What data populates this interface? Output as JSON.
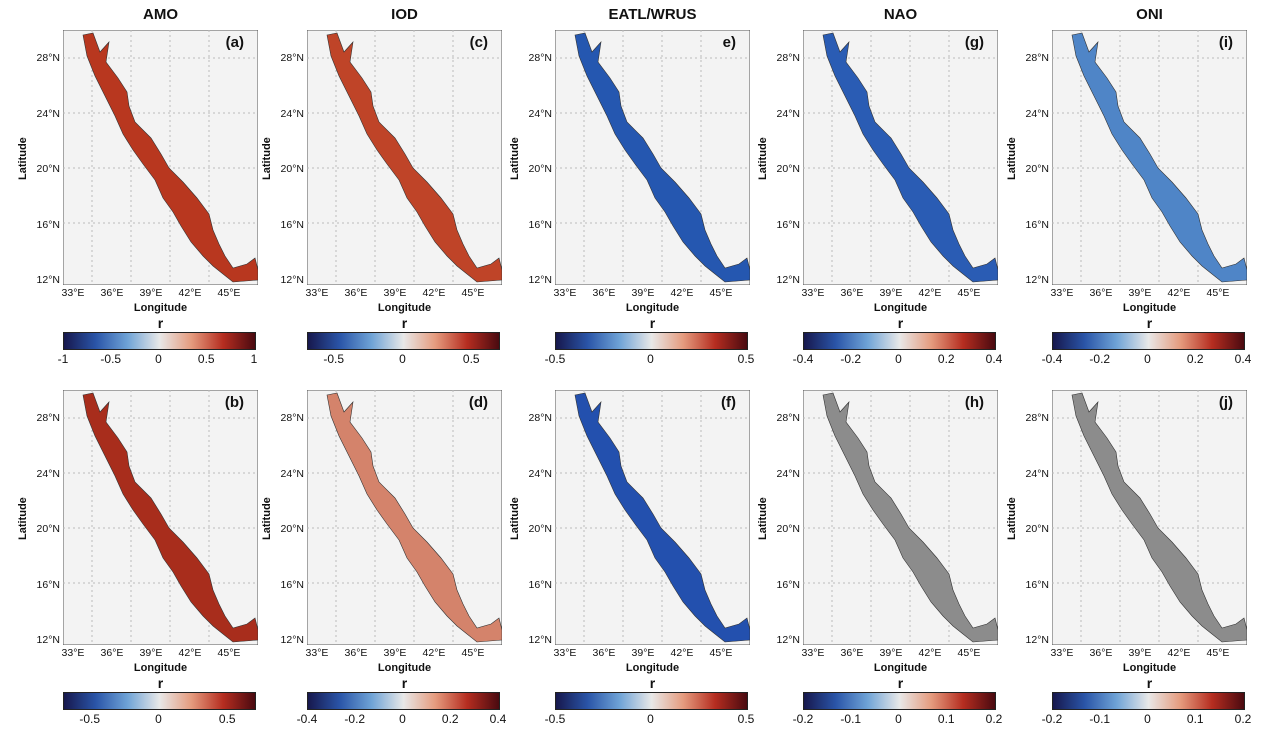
{
  "columns": [
    {
      "title": "AMO",
      "panels": [
        {
          "label": "(a)",
          "fill": "#b8371f",
          "cbar_ticks": [
            "-1",
            "-0.5",
            "0",
            "0.5",
            "1"
          ],
          "cbar_pos": [
            0,
            0.25,
            0.5,
            0.75,
            1
          ]
        },
        {
          "label": "(b)",
          "fill": "#a82d1c",
          "cbar_ticks": [
            "-0.5",
            "0",
            "0.5"
          ],
          "cbar_pos": [
            0.14,
            0.5,
            0.86
          ]
        }
      ]
    },
    {
      "title": "IOD",
      "panels": [
        {
          "label": "(c)",
          "fill": "#bf4428",
          "cbar_ticks": [
            "-0.5",
            "0",
            "0.5"
          ],
          "cbar_pos": [
            0.14,
            0.5,
            0.86
          ]
        },
        {
          "label": "(d)",
          "fill": "#d4836b",
          "cbar_ticks": [
            "-0.4",
            "-0.2",
            "0",
            "0.2",
            "0.4"
          ],
          "cbar_pos": [
            0,
            0.25,
            0.5,
            0.75,
            1
          ]
        }
      ]
    },
    {
      "title": "EATL/WRUS",
      "panels": [
        {
          "label": "e)",
          "fill": "#2557b0",
          "cbar_ticks": [
            "-0.5",
            "0",
            "0.5"
          ],
          "cbar_pos": [
            0,
            0.5,
            1
          ]
        },
        {
          "label": "(f)",
          "fill": "#2350ae",
          "cbar_ticks": [
            "-0.5",
            "0",
            "0.5"
          ],
          "cbar_pos": [
            0,
            0.5,
            1
          ]
        }
      ]
    },
    {
      "title": "NAO",
      "panels": [
        {
          "label": "(g)",
          "fill": "#2a5cb4",
          "cbar_ticks": [
            "-0.4",
            "-0.2",
            "0",
            "0.2",
            "0.4"
          ],
          "cbar_pos": [
            0,
            0.25,
            0.5,
            0.75,
            1
          ]
        },
        {
          "label": "(h)",
          "fill": "#8c8c8c",
          "cbar_ticks": [
            "-0.2",
            "-0.1",
            "0",
            "0.1",
            "0.2"
          ],
          "cbar_pos": [
            0,
            0.25,
            0.5,
            0.75,
            1
          ]
        }
      ]
    },
    {
      "title": "ONI",
      "panels": [
        {
          "label": "(i)",
          "fill": "#4f85c7",
          "cbar_ticks": [
            "-0.4",
            "-0.2",
            "0",
            "0.2",
            "0.4"
          ],
          "cbar_pos": [
            0,
            0.25,
            0.5,
            0.75,
            1
          ]
        },
        {
          "label": "(j)",
          "fill": "#8c8c8c",
          "cbar_ticks": [
            "-0.2",
            "-0.1",
            "0",
            "0.1",
            "0.2"
          ],
          "cbar_pos": [
            0,
            0.25,
            0.5,
            0.75,
            1
          ]
        }
      ]
    }
  ],
  "lat_ticks": [
    "28°N",
    "24°N",
    "20°N",
    "16°N",
    "12°N"
  ],
  "lon_ticks": [
    "33°E",
    "36°E",
    "39°E",
    "42°E",
    "45°E"
  ],
  "xlabel": "Longitude",
  "ylabel": "Latitude",
  "cbar_title": "r"
}
